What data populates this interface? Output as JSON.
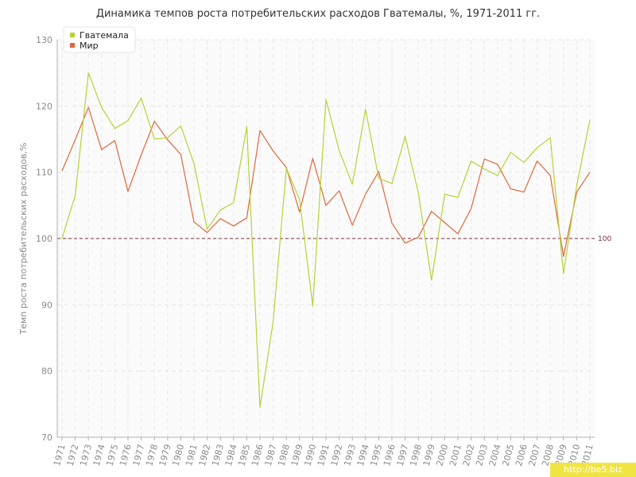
{
  "chart_data": {
    "type": "line",
    "title": "Динамика темпов роста потребительских расходов Гватемалы, %, 1971-2011 гг.",
    "ylabel": "Темп роста потребительских расходов,%",
    "xlabel": "",
    "ylim": [
      70,
      130
    ],
    "yticks": [
      "70",
      "80",
      "90",
      "100",
      "110",
      "120",
      "130"
    ],
    "x": [
      "1971",
      "1972",
      "1973",
      "1974",
      "1975",
      "1976",
      "1977",
      "1978",
      "1979",
      "1980",
      "1981",
      "1982",
      "1983",
      "1984",
      "1985",
      "1986",
      "1987",
      "1988",
      "1989",
      "1990",
      "1991",
      "1992",
      "1993",
      "1994",
      "1995",
      "1996",
      "1997",
      "1998",
      "1999",
      "2000",
      "2001",
      "2002",
      "2003",
      "2004",
      "2005",
      "2006",
      "2007",
      "2008",
      "2009",
      "2010",
      "2011"
    ],
    "series": [
      {
        "name": "Гватемала",
        "color": "#b5d334",
        "values": [
          100.0,
          106.5,
          125.0,
          119.8,
          116.6,
          117.8,
          121.2,
          115.0,
          115.2,
          117.0,
          111.3,
          101.4,
          104.3,
          105.4,
          116.9,
          74.5,
          87.5,
          110.6,
          105.9,
          89.8,
          121.0,
          113.3,
          108.2,
          119.5,
          109.1,
          108.3,
          115.4,
          106.9,
          93.7,
          106.7,
          106.2,
          111.7,
          110.5,
          109.5,
          113.0,
          111.5,
          113.7,
          115.2,
          94.7,
          108.0,
          117.9
        ]
      },
      {
        "name": "Мир",
        "color": "#e0673c",
        "values": [
          110.2,
          114.9,
          119.8,
          113.4,
          114.8,
          107.1,
          112.6,
          117.7,
          114.9,
          112.7,
          102.5,
          100.9,
          103.0,
          101.9,
          103.1,
          116.3,
          113.2,
          110.7,
          104.0,
          112.1,
          105.0,
          107.2,
          102.0,
          106.7,
          110.1,
          102.3,
          99.3,
          100.2,
          104.1,
          102.4,
          100.7,
          104.5,
          112.0,
          111.2,
          107.5,
          107.0,
          111.7,
          109.5,
          97.3,
          107.0,
          110.0
        ]
      }
    ],
    "reference_line": {
      "value": 100,
      "label": "100",
      "color": "#7a2a3a",
      "style": "dashed"
    },
    "grid": true,
    "legend_position": "top-left"
  },
  "watermark": "http://be5.biz"
}
